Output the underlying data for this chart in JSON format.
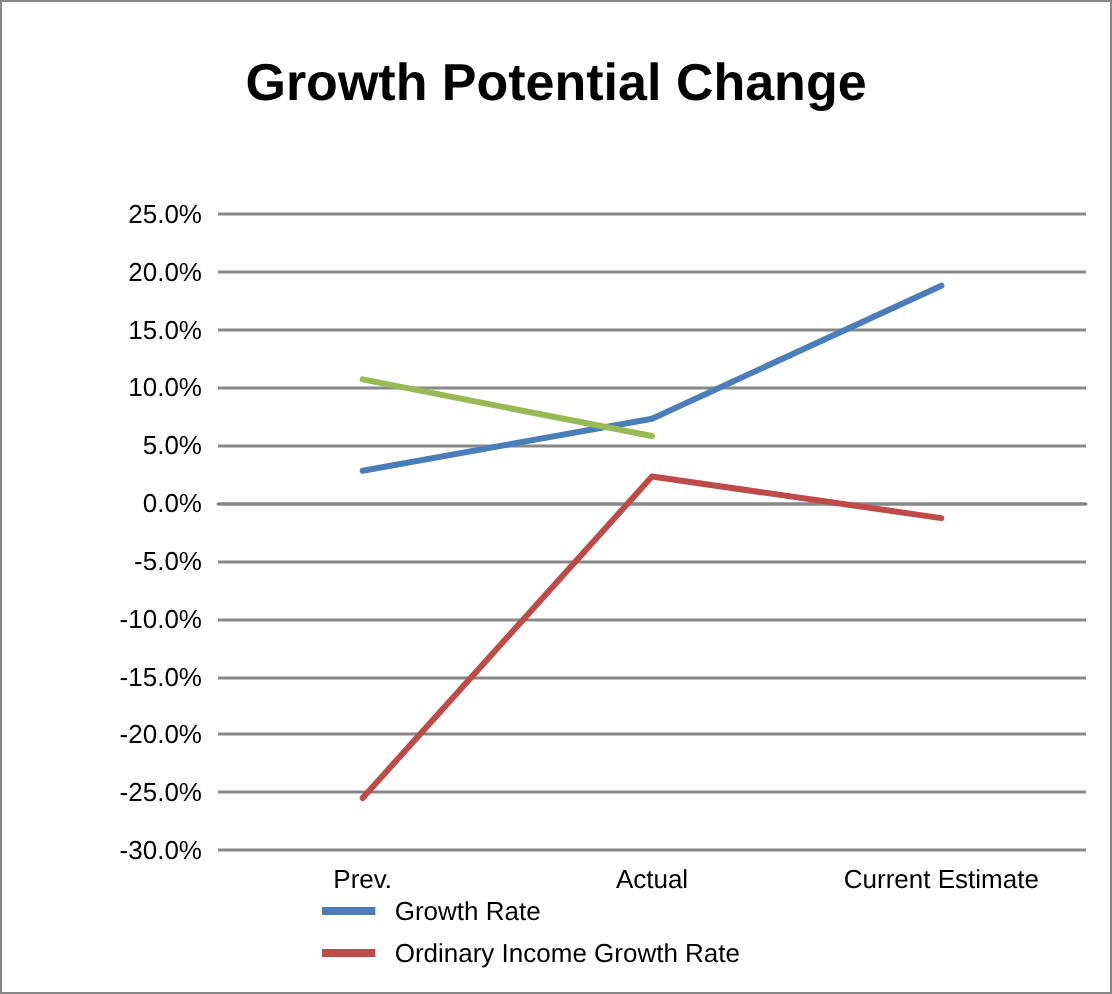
{
  "chart_data": {
    "type": "line",
    "title": "Growth Potential Change",
    "categories": [
      "Prev.",
      "Actual",
      "Current Estimate"
    ],
    "series": [
      {
        "name": "Growth Rate",
        "color": "#4a7ebb",
        "values": [
          2.8,
          7.3,
          18.8
        ]
      },
      {
        "name": "Ordinary Income Growth Rate",
        "color": "#be4b48",
        "values": [
          -25.5,
          2.3,
          -1.3
        ]
      },
      {
        "color": "#98b954",
        "values": [
          10.7,
          5.8,
          null
        ]
      }
    ],
    "ylim": [
      -30,
      25
    ],
    "yticks": [
      {
        "value": -30,
        "label": "-30.0%"
      },
      {
        "value": -25,
        "label": "-25.0%"
      },
      {
        "value": -20,
        "label": "-20.0%"
      },
      {
        "value": -15,
        "label": "-15.0%"
      },
      {
        "value": -10,
        "label": "-10.0%"
      },
      {
        "value": -5,
        "label": "-5.0%"
      },
      {
        "value": 0,
        "label": "0.0%"
      },
      {
        "value": 5,
        "label": "5.0%"
      },
      {
        "value": 10,
        "label": "10.0%"
      },
      {
        "value": 15,
        "label": "15.0%"
      },
      {
        "value": 20,
        "label": "20.0%"
      },
      {
        "value": 25,
        "label": "25.0%"
      }
    ],
    "grid": "y",
    "legend": "bottom",
    "marker": "none",
    "line_style": "solid"
  }
}
